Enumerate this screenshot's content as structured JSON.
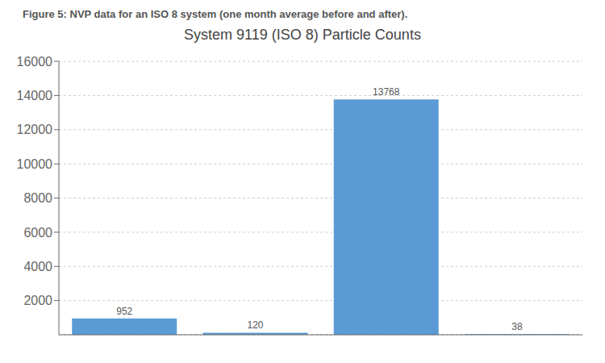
{
  "chart_data": {
    "type": "bar",
    "title": "System 9119 (ISO 8) Particle Counts",
    "subtitle": "Figure 5: NVP data for an ISO 8 system (one month average before and after).",
    "categories": [
      null,
      null,
      null,
      null
    ],
    "values": [
      952,
      120,
      13768,
      38
    ],
    "color": "#5B9BD5",
    "ylim": [
      0,
      16000
    ],
    "yticks": [
      2000,
      4000,
      6000,
      8000,
      10000,
      12000,
      14000,
      16000
    ],
    "grid": true,
    "data_labels": true,
    "tick_labels": "y"
  }
}
